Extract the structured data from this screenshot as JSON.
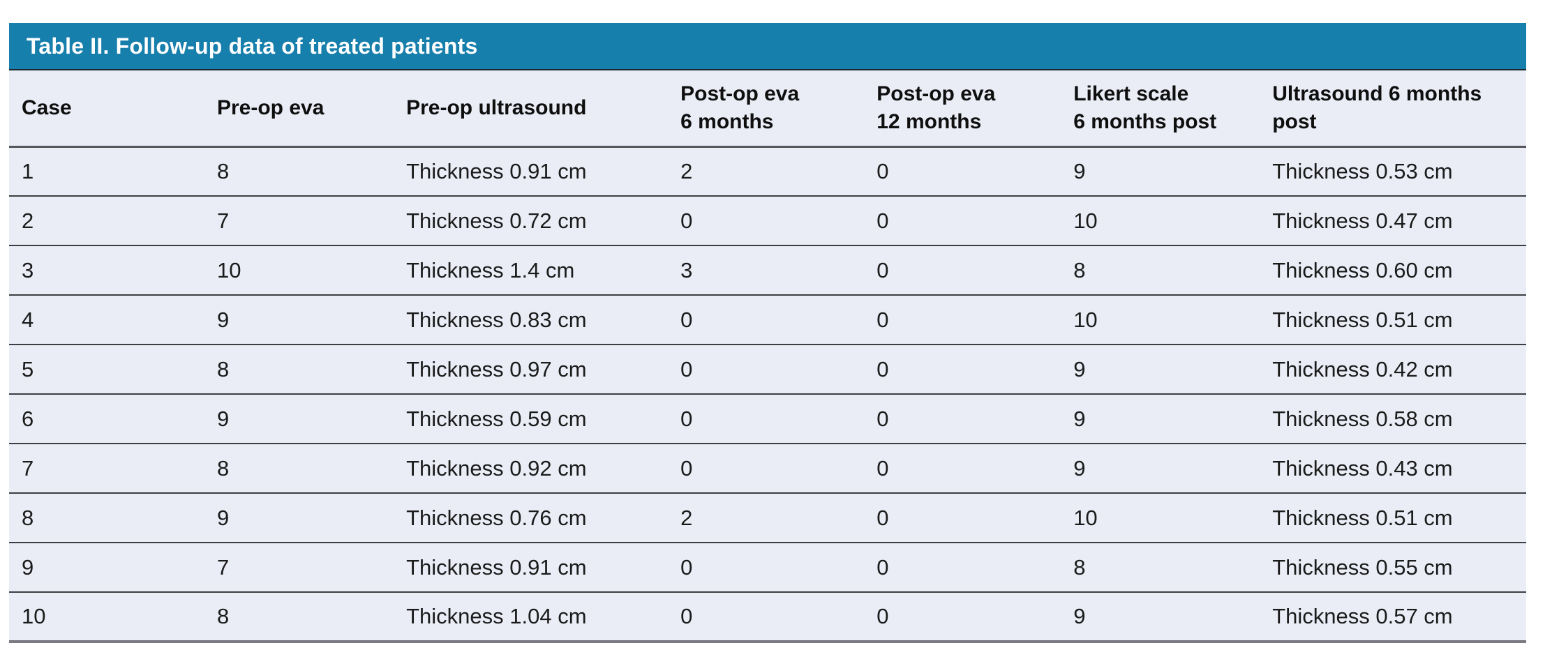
{
  "table": {
    "title": "Table II. Follow-up data of treated patients",
    "columns": [
      {
        "label": "Case"
      },
      {
        "label": "Pre-op eva"
      },
      {
        "label": "Pre-op ultrasound"
      },
      {
        "label": "Post-op eva\n6 months"
      },
      {
        "label": "Post-op eva\n12 months"
      },
      {
        "label": "Likert scale\n6 months post"
      },
      {
        "label": "Ultrasound 6 months\npost"
      }
    ],
    "rows": [
      [
        "1",
        "8",
        "Thickness 0.91 cm",
        "2",
        "0",
        "9",
        "Thickness 0.53 cm"
      ],
      [
        "2",
        "7",
        "Thickness 0.72 cm",
        "0",
        "0",
        "10",
        "Thickness 0.47 cm"
      ],
      [
        "3",
        "10",
        "Thickness 1.4 cm",
        "3",
        "0",
        "8",
        "Thickness 0.60 cm"
      ],
      [
        "4",
        "9",
        "Thickness 0.83 cm",
        "0",
        "0",
        "10",
        "Thickness 0.51 cm"
      ],
      [
        "5",
        "8",
        "Thickness 0.97 cm",
        "0",
        "0",
        "9",
        "Thickness 0.42 cm"
      ],
      [
        "6",
        "9",
        "Thickness 0.59 cm",
        "0",
        "0",
        "9",
        "Thickness 0.58 cm"
      ],
      [
        "7",
        "8",
        "Thickness 0.92 cm",
        "0",
        "0",
        "9",
        "Thickness 0.43 cm"
      ],
      [
        "8",
        "9",
        "Thickness 0.76 cm",
        "2",
        "0",
        "10",
        "Thickness 0.51 cm"
      ],
      [
        "9",
        "7",
        "Thickness 0.91 cm",
        "0",
        "0",
        "8",
        "Thickness 0.55 cm"
      ],
      [
        "10",
        "8",
        "Thickness 1.04 cm",
        "0",
        "0",
        "9",
        "Thickness 0.57 cm"
      ]
    ]
  },
  "colors": {
    "title_bar_bg": "#177FAC",
    "title_bar_underline": "#182730",
    "title_text": "#FFFFFF",
    "body_bg": "#EAEDF6",
    "header_text": "#0F0F0F",
    "cell_text": "#1B1B1B",
    "header_rule": "#57575B",
    "row_rule": "#3E3E42",
    "bottom_rule": "#7A7A82"
  }
}
